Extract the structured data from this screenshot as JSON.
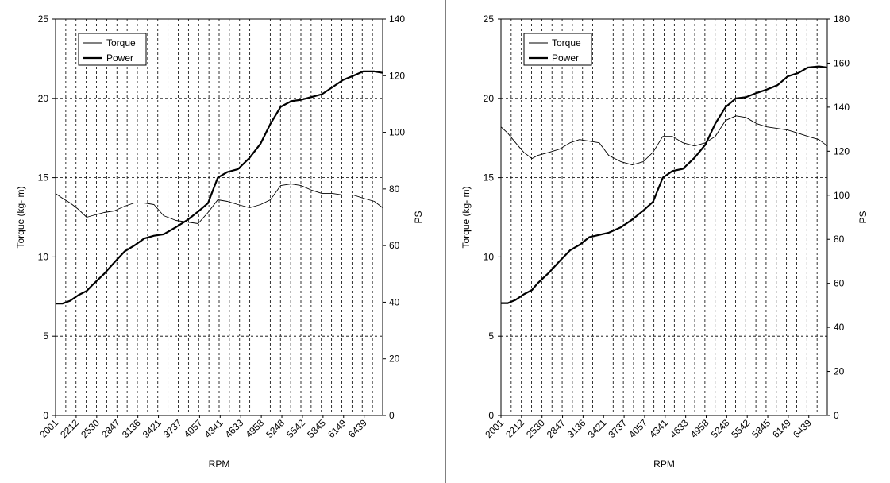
{
  "chart_data": [
    {
      "type": "line",
      "xlabel": "RPM",
      "ylabel": "Torque (kg- m)",
      "y2label": "PS",
      "ylim": [
        0,
        25
      ],
      "y2lim": [
        0,
        140
      ],
      "yticks": [
        0,
        5,
        10,
        15,
        20,
        25
      ],
      "y2ticks": [
        0,
        20,
        40,
        60,
        80,
        100,
        120,
        140
      ],
      "x_tick_labels": [
        "2001",
        "2212",
        "2530",
        "2847",
        "3136",
        "3421",
        "3737",
        "4057",
        "4341",
        "4633",
        "4958",
        "5248",
        "5542",
        "5845",
        "6149",
        "6439"
      ],
      "x_range": [
        2001,
        6720
      ],
      "grid": true,
      "legend": "top-left",
      "legend_entries": [
        "Torque",
        "Power"
      ],
      "series": [
        {
          "name": "Torque",
          "axis": "left",
          "style": "thin",
          "x": [
            2001,
            2100,
            2212,
            2330,
            2450,
            2530,
            2700,
            2847,
            3000,
            3136,
            3280,
            3421,
            3560,
            3737,
            3900,
            4057,
            4200,
            4341,
            4480,
            4633,
            4800,
            4958,
            5100,
            5248,
            5400,
            5542,
            5700,
            5845,
            6000,
            6149,
            6300,
            6439,
            6600,
            6720
          ],
          "values": [
            14.0,
            13.7,
            13.4,
            13.0,
            12.5,
            12.6,
            12.8,
            12.9,
            13.2,
            13.4,
            13.4,
            13.3,
            12.6,
            12.3,
            12.2,
            12.1,
            12.8,
            13.6,
            13.5,
            13.3,
            13.1,
            13.3,
            13.6,
            14.5,
            14.6,
            14.5,
            14.2,
            14.0,
            14.0,
            13.9,
            13.9,
            13.7,
            13.5,
            13.1
          ]
        },
        {
          "name": "Power",
          "axis": "right",
          "style": "thick",
          "x": [
            2001,
            2100,
            2212,
            2330,
            2450,
            2530,
            2700,
            2847,
            3000,
            3136,
            3280,
            3421,
            3560,
            3737,
            3900,
            4057,
            4200,
            4341,
            4480,
            4633,
            4800,
            4958,
            5100,
            5248,
            5400,
            5542,
            5700,
            5845,
            6000,
            6149,
            6300,
            6439,
            6600,
            6720
          ],
          "values": [
            39.5,
            39.5,
            40.5,
            42.5,
            44.0,
            46.0,
            50.0,
            54.0,
            58.0,
            60.0,
            62.5,
            63.5,
            64.0,
            66.5,
            69.0,
            72.0,
            75.0,
            84.0,
            86.0,
            87.0,
            91.0,
            96.0,
            103.0,
            109.0,
            111.0,
            111.5,
            112.5,
            113.5,
            116.0,
            118.5,
            120.0,
            121.5,
            121.5,
            121.0
          ]
        }
      ]
    },
    {
      "type": "line",
      "xlabel": "RPM",
      "ylabel": "Torque (kg- m)",
      "y2label": "PS",
      "ylim": [
        0,
        25
      ],
      "y2lim": [
        0,
        180
      ],
      "yticks": [
        0,
        5,
        10,
        15,
        20,
        25
      ],
      "y2ticks": [
        0,
        20,
        40,
        60,
        80,
        100,
        120,
        140,
        160,
        180
      ],
      "x_tick_labels": [
        "2001",
        "2212",
        "2530",
        "2847",
        "3136",
        "3421",
        "3737",
        "4057",
        "4341",
        "4633",
        "4958",
        "5248",
        "5542",
        "5845",
        "6149",
        "6439"
      ],
      "x_range": [
        2001,
        6720
      ],
      "grid": true,
      "legend": "top-left",
      "legend_entries": [
        "Torque",
        "Power"
      ],
      "series": [
        {
          "name": "Torque",
          "axis": "left",
          "style": "thin",
          "x": [
            2001,
            2100,
            2212,
            2330,
            2450,
            2530,
            2700,
            2847,
            3000,
            3136,
            3280,
            3421,
            3560,
            3737,
            3900,
            4057,
            4200,
            4341,
            4480,
            4633,
            4800,
            4958,
            5100,
            5248,
            5400,
            5542,
            5700,
            5845,
            6000,
            6149,
            6300,
            6439,
            6600,
            6720
          ],
          "values": [
            18.2,
            17.8,
            17.2,
            16.6,
            16.2,
            16.4,
            16.6,
            16.8,
            17.2,
            17.4,
            17.3,
            17.2,
            16.4,
            16.0,
            15.8,
            16.0,
            16.6,
            17.6,
            17.6,
            17.2,
            17.0,
            17.2,
            17.6,
            18.6,
            18.9,
            18.8,
            18.4,
            18.2,
            18.1,
            18.0,
            17.8,
            17.6,
            17.4,
            17.0
          ]
        },
        {
          "name": "Power",
          "axis": "right",
          "style": "thick",
          "x": [
            2001,
            2100,
            2212,
            2330,
            2450,
            2530,
            2700,
            2847,
            3000,
            3136,
            3280,
            3421,
            3560,
            3737,
            3900,
            4057,
            4200,
            4341,
            4480,
            4633,
            4800,
            4958,
            5100,
            5248,
            5400,
            5542,
            5700,
            5845,
            6000,
            6149,
            6300,
            6439,
            6600,
            6720
          ],
          "values": [
            51.0,
            51.0,
            52.5,
            55.0,
            57.0,
            60.0,
            65.0,
            70.0,
            75.0,
            77.5,
            81.0,
            82.0,
            83.0,
            85.5,
            89.0,
            93.0,
            97.0,
            108.0,
            111.0,
            112.0,
            117.0,
            123.0,
            132.5,
            140.0,
            144.0,
            144.5,
            146.5,
            148.0,
            150.0,
            154.0,
            155.5,
            158.0,
            158.5,
            158.0
          ]
        }
      ]
    }
  ]
}
